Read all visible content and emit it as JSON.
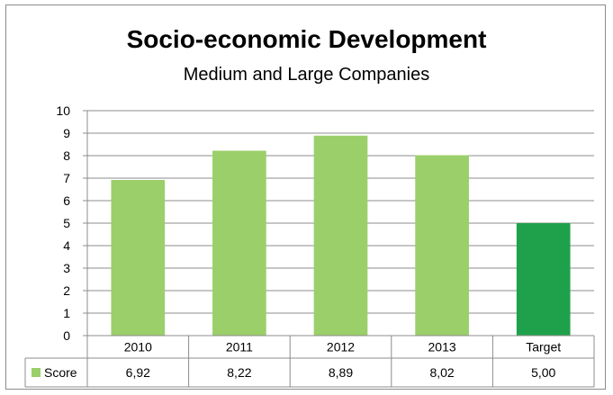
{
  "chart_data": {
    "type": "bar",
    "title": "Socio-economic Development",
    "subtitle": "Medium and Large Companies",
    "categories": [
      "2010",
      "2011",
      "2012",
      "2013",
      "Target"
    ],
    "series": [
      {
        "name": "Score",
        "values": [
          6.92,
          8.22,
          8.89,
          8.02,
          5.0
        ],
        "display_values": [
          "6,92",
          "8,22",
          "8,89",
          "8,02",
          "5,00"
        ]
      }
    ],
    "ylim": [
      0,
      10
    ],
    "yticks": [
      "0",
      "1",
      "2",
      "3",
      "4",
      "5",
      "6",
      "7",
      "8",
      "9",
      "10"
    ],
    "grid": true,
    "legend": "data-table",
    "colors": {
      "bar": "#9bcf6a",
      "target_bar": "#1fa14b",
      "grid": "#8c8c8c",
      "legend_key": "#9bcf6a"
    }
  }
}
